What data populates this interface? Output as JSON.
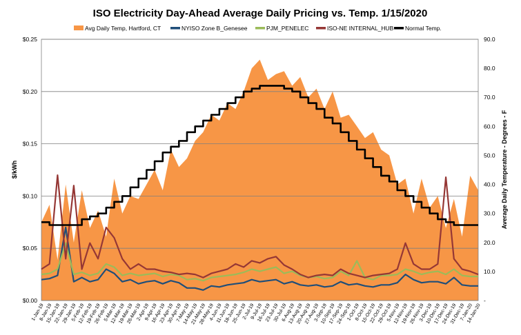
{
  "chart_data": {
    "type": "line",
    "title": "ISO Electricity Day-Ahead Average Daily Pricing vs. Temp. 1/15/2020",
    "ylabel": "$/kWh",
    "y2label": "Average Daily Temperature - Degrees - F",
    "ylim": [
      0,
      0.25
    ],
    "y2lim": [
      0,
      90
    ],
    "yticks": [
      "$0.00",
      "$0.05",
      "$0.10",
      "$0.15",
      "$0.20",
      "$0.25"
    ],
    "y2ticks": [
      "-",
      "10.0",
      "20.0",
      "30.0",
      "40.0",
      "50.0",
      "60.0",
      "70.0",
      "80.0",
      "90.0"
    ],
    "grid": true,
    "legend_position": "top",
    "x_categories": [
      "1-Jan-19",
      "8-Jan-19",
      "15-Jan-19",
      "22-Jan-19",
      "29-Jan-19",
      "5-Feb-19",
      "12-Feb-19",
      "19-Feb-19",
      "26-Feb-19",
      "5-Mar-19",
      "12-Mar-19",
      "19-Mar-19",
      "26-Mar-19",
      "2-Apr-19",
      "9-Apr-19",
      "16-Apr-19",
      "23-Apr-19",
      "30-Apr-19",
      "7-May-19",
      "14-May-19",
      "21-May-19",
      "28-May-19",
      "4-Jun-19",
      "11-Jun-19",
      "18-Jun-19",
      "25-Jun-19",
      "2-Jul-19",
      "9-Jul-19",
      "16-Jul-19",
      "23-Jul-19",
      "30-Jul-19",
      "6-Aug-19",
      "13-Aug-19",
      "20-Aug-19",
      "27-Aug-19",
      "3-Sep-19",
      "10-Sep-19",
      "17-Sep-19",
      "24-Sep-19",
      "1-Oct-19",
      "8-Oct-19",
      "15-Oct-19",
      "22-Oct-19",
      "29-Oct-19",
      "5-Nov-19",
      "12-Nov-19",
      "19-Nov-19",
      "26-Nov-19",
      "3-Dec-19",
      "10-Dec-19",
      "17-Dec-19",
      "24-Dec-19",
      "31-Dec-19",
      "7-Jan-20",
      "14-Jan-20"
    ],
    "series": [
      {
        "name": "Avg Daily Temp, Hartford, CT",
        "kind": "area",
        "axis": "right",
        "color": "#F79646",
        "values": [
          27,
          33,
          14,
          40,
          20,
          38,
          25,
          31,
          22,
          42,
          30,
          36,
          35,
          40,
          45,
          38,
          52,
          46,
          49,
          55,
          58,
          64,
          62,
          68,
          66,
          72,
          80,
          83,
          76,
          78,
          79,
          74,
          77,
          70,
          73,
          66,
          72,
          63,
          64,
          60,
          56,
          58,
          52,
          50,
          40,
          42,
          30,
          42,
          32,
          36,
          25,
          35,
          22,
          43,
          38
        ]
      },
      {
        "name": "NYISO Zone B_Genesee",
        "kind": "line",
        "axis": "left",
        "color": "#1F4E79",
        "values": [
          0.02,
          0.021,
          0.024,
          0.07,
          0.018,
          0.022,
          0.018,
          0.02,
          0.03,
          0.026,
          0.018,
          0.02,
          0.016,
          0.018,
          0.019,
          0.016,
          0.019,
          0.017,
          0.012,
          0.012,
          0.01,
          0.014,
          0.013,
          0.015,
          0.016,
          0.017,
          0.02,
          0.018,
          0.019,
          0.02,
          0.016,
          0.018,
          0.015,
          0.014,
          0.015,
          0.013,
          0.014,
          0.018,
          0.015,
          0.016,
          0.014,
          0.013,
          0.015,
          0.015,
          0.017,
          0.025,
          0.02,
          0.017,
          0.018,
          0.018,
          0.016,
          0.022,
          0.015,
          0.014,
          0.014
        ]
      },
      {
        "name": "PJM_PENELEC",
        "kind": "line",
        "axis": "left",
        "color": "#9BBB59",
        "values": [
          0.025,
          0.026,
          0.03,
          0.055,
          0.025,
          0.027,
          0.024,
          0.026,
          0.035,
          0.032,
          0.024,
          0.026,
          0.024,
          0.025,
          0.026,
          0.023,
          0.025,
          0.024,
          0.02,
          0.021,
          0.019,
          0.022,
          0.023,
          0.024,
          0.025,
          0.027,
          0.03,
          0.028,
          0.03,
          0.032,
          0.026,
          0.028,
          0.024,
          0.022,
          0.023,
          0.021,
          0.022,
          0.028,
          0.024,
          0.038,
          0.022,
          0.02,
          0.024,
          0.024,
          0.025,
          0.03,
          0.028,
          0.025,
          0.027,
          0.028,
          0.025,
          0.03,
          0.024,
          0.023,
          0.023
        ]
      },
      {
        "name": "ISO-NE INTERNAL_HUB",
        "kind": "line",
        "axis": "left",
        "color": "#953735",
        "values": [
          0.03,
          0.035,
          0.12,
          0.04,
          0.11,
          0.03,
          0.055,
          0.04,
          0.07,
          0.06,
          0.04,
          0.03,
          0.035,
          0.03,
          0.03,
          0.028,
          0.027,
          0.025,
          0.026,
          0.025,
          0.022,
          0.026,
          0.028,
          0.03,
          0.035,
          0.032,
          0.038,
          0.036,
          0.04,
          0.042,
          0.034,
          0.03,
          0.025,
          0.022,
          0.024,
          0.025,
          0.024,
          0.03,
          0.026,
          0.024,
          0.022,
          0.024,
          0.025,
          0.026,
          0.03,
          0.055,
          0.035,
          0.03,
          0.03,
          0.035,
          0.118,
          0.04,
          0.03,
          0.028,
          0.025
        ]
      },
      {
        "name": "Normal Temp.",
        "kind": "line",
        "axis": "right",
        "color": "#000000",
        "values": [
          27,
          26,
          26,
          26,
          26,
          28,
          29,
          30,
          32,
          34,
          36,
          39,
          42,
          45,
          48,
          51,
          53,
          55,
          58,
          60,
          62,
          64,
          66,
          68,
          70,
          72,
          73,
          74,
          74,
          74,
          73,
          72,
          70,
          68,
          66,
          63,
          61,
          58,
          55,
          52,
          49,
          46,
          43,
          41,
          38,
          36,
          34,
          32,
          30,
          28,
          27,
          26,
          26,
          26,
          26
        ]
      }
    ]
  }
}
